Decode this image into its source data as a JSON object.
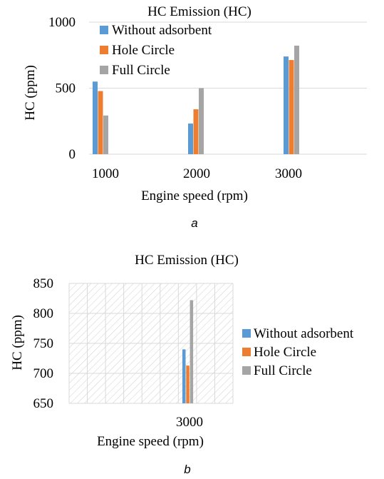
{
  "chart_data": [
    {
      "type": "bar",
      "title": "HC Emission (HC)",
      "xlabel": "Engine speed (rpm)",
      "ylabel": "HC (ppm)",
      "categories": [
        "1000",
        "2000",
        "3000"
      ],
      "ylim": [
        0,
        1000
      ],
      "yticks": [
        "0",
        "500",
        "1000"
      ],
      "grid": true,
      "legend_position": "top-left",
      "series": [
        {
          "name": "Without adsorbent",
          "color": "#5b9bd5",
          "values": [
            550,
            232,
            740
          ]
        },
        {
          "name": "Hole Circle",
          "color": "#ed7d31",
          "values": [
            478,
            340,
            713
          ]
        },
        {
          "name": "Full Circle",
          "color": "#a5a5a5",
          "values": [
            293,
            500,
            822
          ]
        }
      ],
      "caption": "a"
    },
    {
      "type": "bar",
      "title": "HC Emission (HC)",
      "xlabel": "Engine speed (rpm)",
      "ylabel": "HC (ppm)",
      "categories": [
        "3000"
      ],
      "ylim": [
        650,
        850
      ],
      "yticks": [
        "650",
        "700",
        "750",
        "800",
        "850"
      ],
      "grid": true,
      "plot_area_pattern": "diagonal-hatch",
      "legend_position": "right",
      "series": [
        {
          "name": "Without adsorbent",
          "color": "#5b9bd5",
          "values": [
            740
          ]
        },
        {
          "name": "Hole Circle",
          "color": "#ed7d31",
          "values": [
            713
          ]
        },
        {
          "name": "Full Circle",
          "color": "#a5a5a5",
          "values": [
            822
          ]
        }
      ],
      "caption": "b"
    }
  ]
}
